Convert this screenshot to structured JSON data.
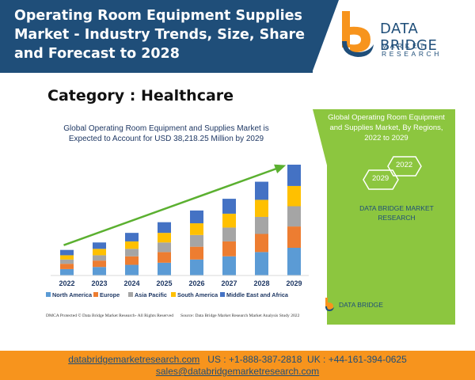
{
  "header": {
    "title_line1": "Operating Room Equipment Supplies",
    "title_line2": "Market - Industry Trends, Size, Share",
    "title_line3": "and Forecast to 2028",
    "logo_name": "DATA BRIDGE",
    "logo_sub": "MARKET RESEARCH"
  },
  "category": "Category : Healthcare",
  "chart_data": {
    "type": "bar",
    "stacked": true,
    "title_line1": "Global Operating Room Equipment and Supplies Market is",
    "title_line2": "Expected to Account for USD 38,218.25 Million by 2029",
    "categories": [
      "2022",
      "2023",
      "2024",
      "2025",
      "2026",
      "2027",
      "2028",
      "2029"
    ],
    "series": [
      {
        "name": "North America",
        "color": "#5b9bd5",
        "values": [
          6,
          8,
          10,
          12,
          15,
          18,
          22,
          26
        ]
      },
      {
        "name": "Europe",
        "color": "#ed7d31",
        "values": [
          5,
          6,
          8,
          10,
          12,
          14,
          17,
          20
        ]
      },
      {
        "name": "Asia Pacific",
        "color": "#a5a5a5",
        "values": [
          4,
          5,
          7,
          9,
          11,
          13,
          16,
          19
        ]
      },
      {
        "name": "South America",
        "color": "#ffc000",
        "values": [
          4,
          6,
          7,
          9,
          11,
          13,
          16,
          19
        ]
      },
      {
        "name": "Middle East and Africa",
        "color": "#4472c4",
        "values": [
          5,
          6,
          8,
          10,
          12,
          14,
          17,
          20
        ]
      }
    ],
    "legend_position": "bottom",
    "trend_arrow": true,
    "gridlines": false
  },
  "footnotes": {
    "left": "DMCA Protected © Data Bridge Market Research- All Rights Reserved",
    "right": "Source: Data Bridge Market Research Market Analysis Study 2022"
  },
  "green_panel": {
    "title_line1": "Global Operating Room Equipment",
    "title_line2": "and Supplies Market, By Regions,",
    "title_line3": "2022 to 2029",
    "hex_a": "2022",
    "hex_b": "2029",
    "sub_line1": "DATA BRIDGE MARKET",
    "sub_line2": "RESEARCH",
    "mini_logo_name": "DATA BRIDGE"
  },
  "footer": {
    "website": "databridgemarketresearch.com",
    "phones": "US : +1-888-387-2818  UK : +44-161-394-0625",
    "email": "sales@databridgemarketresearch.com"
  },
  "colors": {
    "navy": "#1f4e79",
    "orange": "#f7941d",
    "green": "#8cc63f",
    "arrow": "#5bb030"
  }
}
